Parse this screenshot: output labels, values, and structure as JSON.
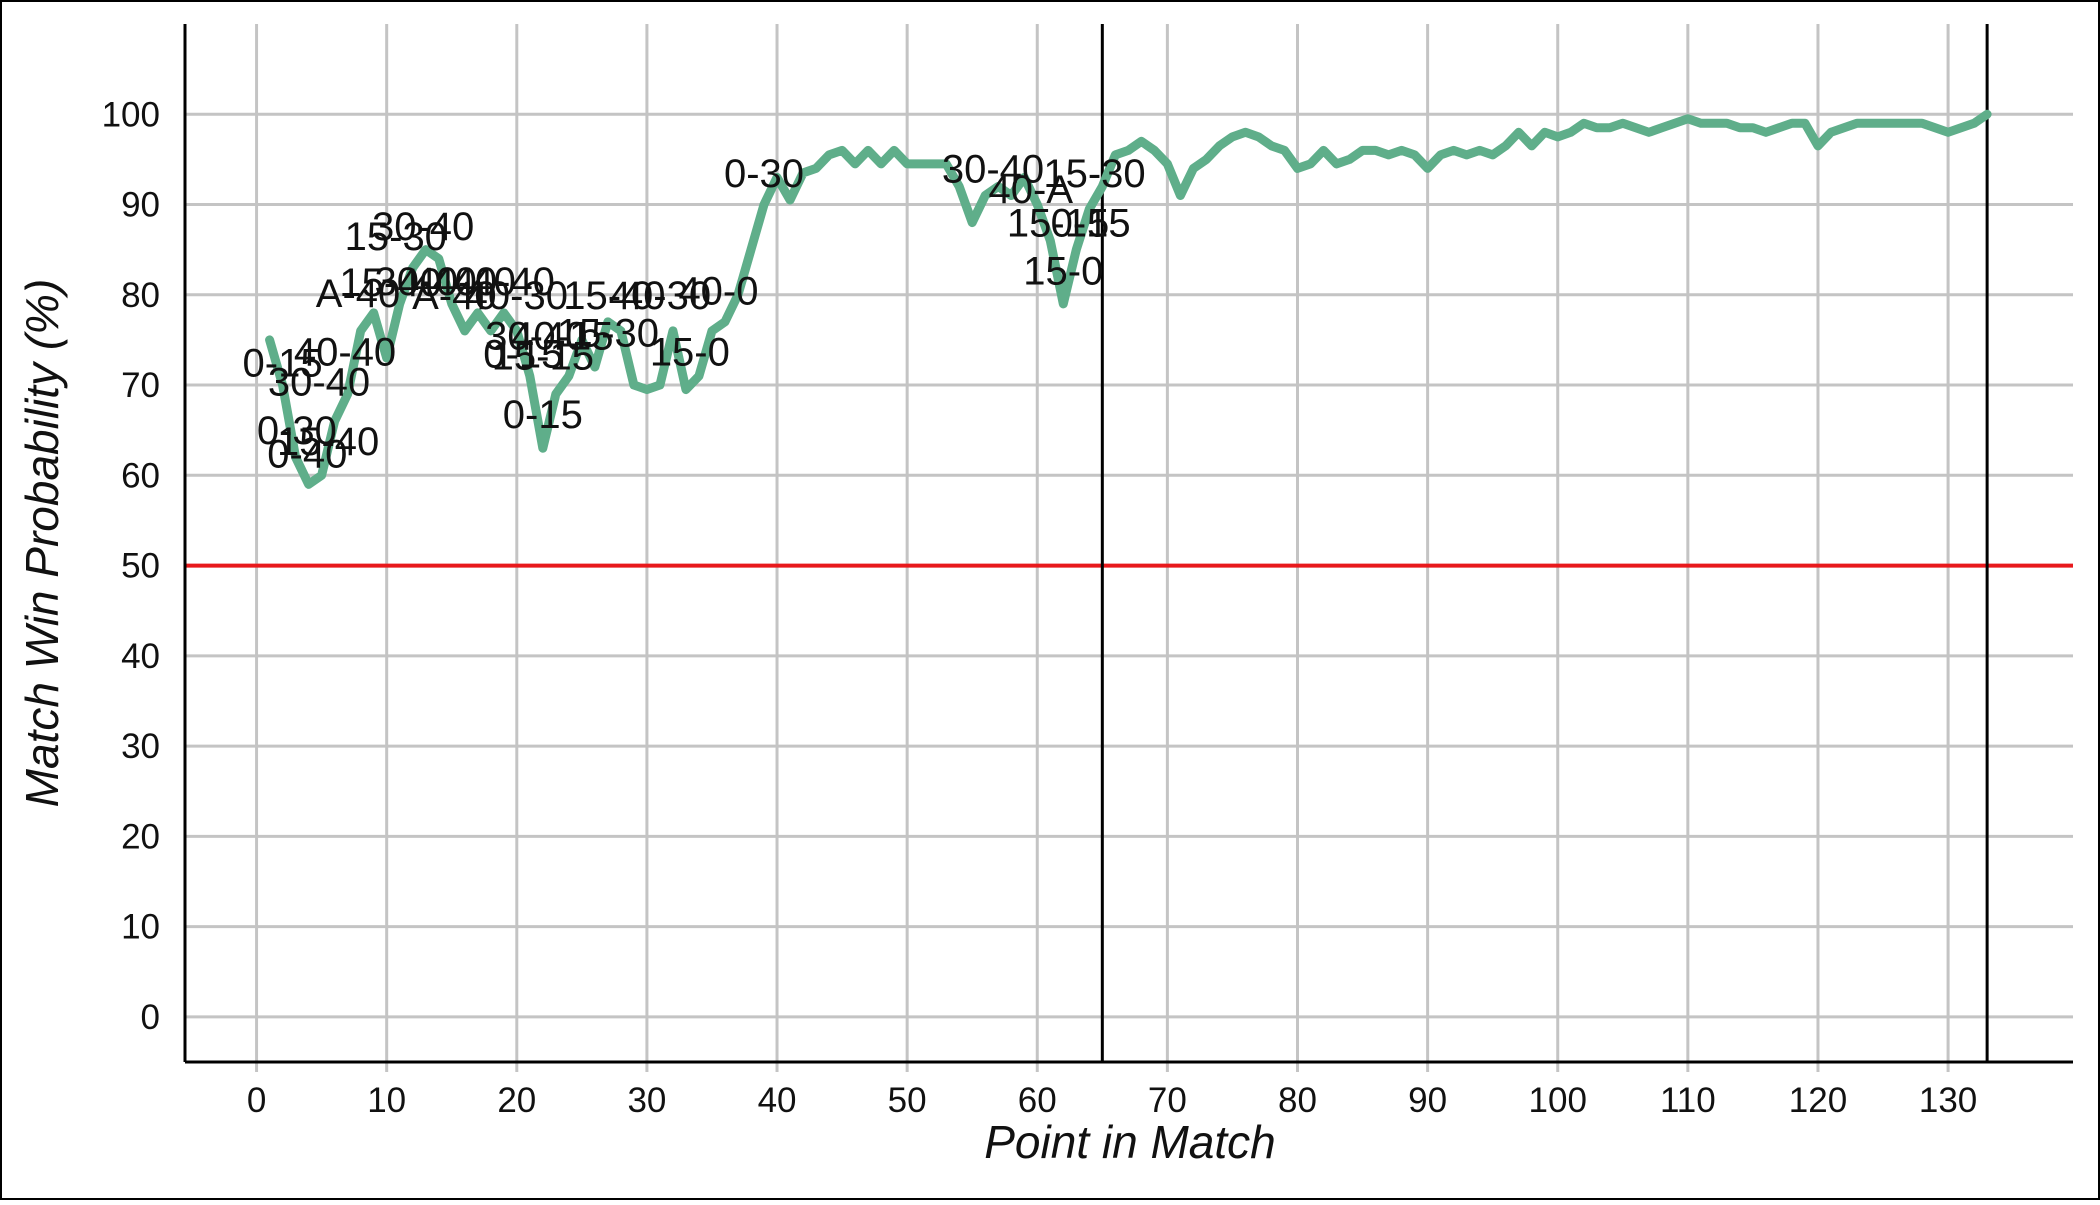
{
  "chart_data": {
    "type": "line",
    "xlabel": "Point in Match",
    "ylabel": "Match Win Probability (%)",
    "x": [
      1,
      2,
      3,
      4,
      5,
      6,
      7,
      8,
      9,
      10,
      11,
      12,
      13,
      14,
      15,
      16,
      17,
      18,
      19,
      20,
      21,
      22,
      23,
      24,
      25,
      26,
      27,
      28,
      29,
      30,
      31,
      32,
      33,
      34,
      35,
      36,
      37,
      38,
      39,
      40,
      41,
      42,
      43,
      44,
      45,
      46,
      47,
      48,
      49,
      50,
      51,
      52,
      53,
      54,
      55,
      56,
      57,
      58,
      59,
      60,
      61,
      62,
      63,
      64,
      65,
      66,
      67,
      68,
      69,
      70,
      71,
      72,
      73,
      74,
      75,
      76,
      77,
      78,
      79,
      80,
      81,
      82,
      83,
      84,
      85,
      86,
      87,
      88,
      89,
      90,
      91,
      92,
      93,
      94,
      95,
      96,
      97,
      98,
      99,
      100,
      101,
      102,
      103,
      104,
      105,
      106,
      107,
      108,
      109,
      110,
      111,
      112,
      113,
      114,
      115,
      116,
      117,
      118,
      119,
      120,
      121,
      122,
      123,
      124,
      125,
      126,
      127,
      128,
      129,
      130,
      131,
      132,
      133
    ],
    "series": [
      {
        "color": "#5fae8a",
        "values": [
          75,
          70,
          62,
          59,
          60,
          66,
          69,
          76,
          78,
          73,
          79,
          83,
          85,
          84,
          79,
          76,
          78,
          76,
          78,
          76,
          71,
          63,
          69,
          71,
          75,
          72,
          77,
          76,
          70,
          69.5,
          70,
          76,
          69.5,
          71,
          76,
          77,
          80,
          85,
          90,
          93,
          90.5,
          93.5,
          94,
          95.5,
          96,
          94.5,
          96,
          94.5,
          96,
          94.5,
          94.5,
          94.5,
          94.5,
          92,
          88,
          91,
          92,
          91,
          93,
          90,
          86,
          79,
          85,
          89.5,
          92,
          95.5,
          96,
          97,
          96,
          94.5,
          91,
          94,
          95,
          96.5,
          97.5,
          98,
          97.5,
          96.5,
          96,
          94,
          94.5,
          96,
          94.5,
          95,
          96,
          96,
          95.5,
          96,
          95.5,
          94,
          95.5,
          96,
          95.5,
          96,
          95.5,
          96.5,
          98,
          96.5,
          98,
          97.5,
          98,
          99,
          98.5,
          98.5,
          99,
          98.5,
          98,
          98.5,
          99,
          99.5,
          99,
          99,
          99,
          98.5,
          98.5,
          98,
          98.5,
          99,
          99,
          96.5,
          98,
          98.5,
          99,
          99,
          99,
          99,
          99,
          99,
          98.5,
          98,
          98.5,
          99,
          100
        ]
      }
    ],
    "xlim": [
      -5.5,
      139.6
    ],
    "ylim": [
      -5,
      110
    ],
    "xticks": [
      0,
      10,
      20,
      30,
      40,
      50,
      60,
      70,
      80,
      90,
      100,
      110,
      120,
      130
    ],
    "yticks": [
      0,
      10,
      20,
      30,
      40,
      50,
      60,
      70,
      80,
      90,
      100
    ],
    "grid": true,
    "vlines": [
      65,
      133
    ],
    "vline_color": "#000000",
    "hlines": [
      50
    ],
    "hline_color": "#e8191c",
    "annotations": [
      {
        "text": "0-15",
        "x": 2,
        "y": 72.5
      },
      {
        "text": "40-40",
        "x": 6.8,
        "y": 73.7
      },
      {
        "text": "30-40",
        "x": 4.8,
        "y": 70.4
      },
      {
        "text": "0-30",
        "x": 3.1,
        "y": 65
      },
      {
        "text": "15-40",
        "x": 5.5,
        "y": 63.8
      },
      {
        "text": "0-40",
        "x": 3.9,
        "y": 62.4
      },
      {
        "text": "A-40",
        "x": 7.8,
        "y": 80.2
      },
      {
        "text": "15-40",
        "x": 10.3,
        "y": 81.4
      },
      {
        "text": "15-30",
        "x": 10.7,
        "y": 86.5
      },
      {
        "text": "30-40",
        "x": 12.8,
        "y": 87.6
      },
      {
        "text": "30-40",
        "x": 13,
        "y": 81.5
      },
      {
        "text": "40-40",
        "x": 16,
        "y": 81.5
      },
      {
        "text": "A-40",
        "x": 15.2,
        "y": 80
      },
      {
        "text": "40-40",
        "x": 19,
        "y": 81.5
      },
      {
        "text": "40-30",
        "x": 20,
        "y": 80
      },
      {
        "text": "0-15",
        "x": 20.5,
        "y": 73.5
      },
      {
        "text": "30-40",
        "x": 21.5,
        "y": 75.5
      },
      {
        "text": "15-15",
        "x": 22,
        "y": 73.3
      },
      {
        "text": "40-15",
        "x": 23.5,
        "y": 75.5
      },
      {
        "text": "15-30",
        "x": 27,
        "y": 75.8
      },
      {
        "text": "15-40",
        "x": 27.5,
        "y": 80
      },
      {
        "text": "40-30",
        "x": 31,
        "y": 80
      },
      {
        "text": "40-0",
        "x": 35.5,
        "y": 80.5
      },
      {
        "text": "15-0",
        "x": 33.3,
        "y": 73.7
      },
      {
        "text": "0-15",
        "x": 22,
        "y": 66.8
      },
      {
        "text": "0-30",
        "x": 39,
        "y": 93.5
      },
      {
        "text": "30-40",
        "x": 56.6,
        "y": 94
      },
      {
        "text": "40-A",
        "x": 59.5,
        "y": 91.7
      },
      {
        "text": "15-30",
        "x": 64.4,
        "y": 93.5
      },
      {
        "text": "15-15",
        "x": 61.6,
        "y": 88
      },
      {
        "text": "0-15",
        "x": 64.1,
        "y": 88
      },
      {
        "text": "15-0",
        "x": 62,
        "y": 82.7
      }
    ]
  }
}
